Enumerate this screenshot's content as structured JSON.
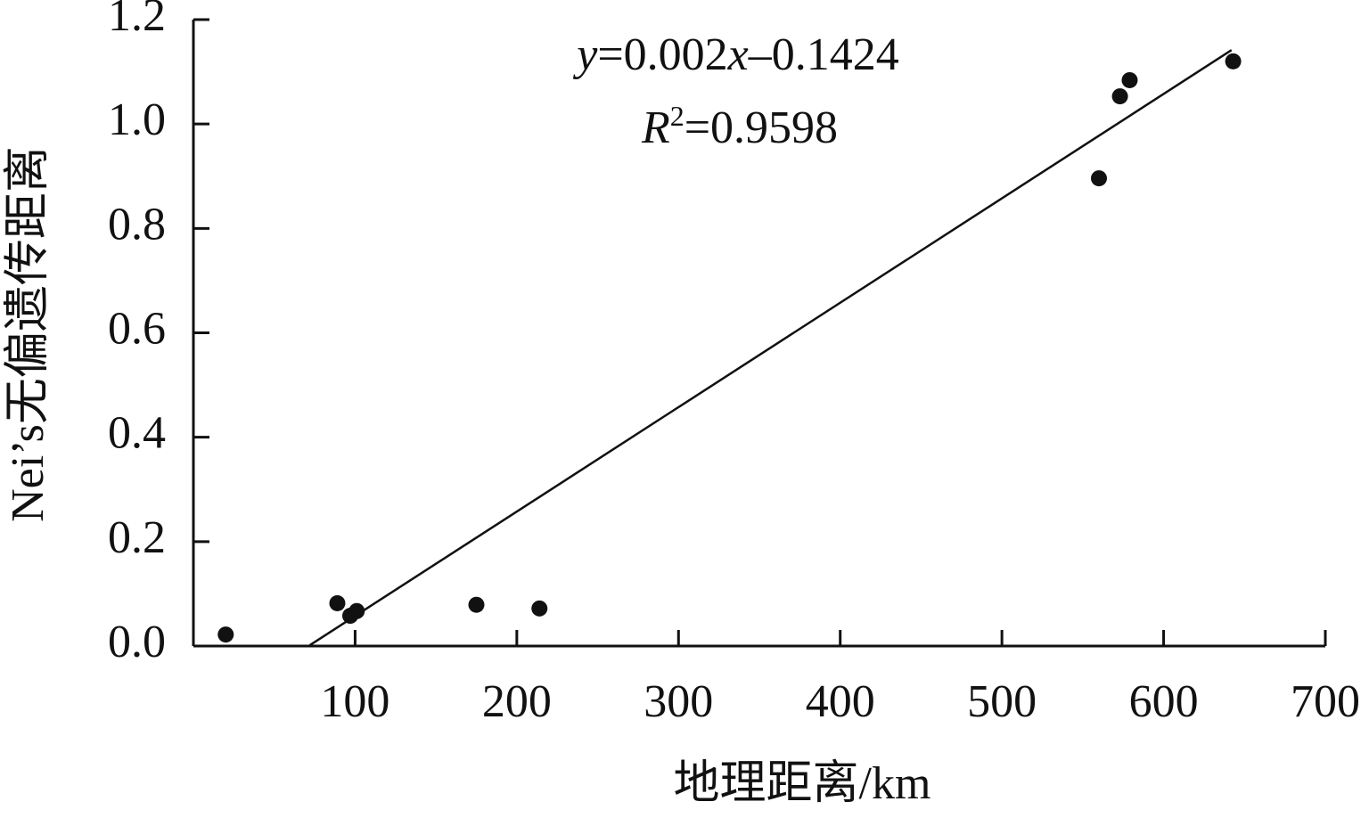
{
  "chart_data": {
    "type": "scatter",
    "x_label": "地理距离/km",
    "y_label": "Nei’s无偏遗传距离",
    "equation": [
      "y",
      "=0.002",
      "x",
      "–0.1424"
    ],
    "r_squared": [
      "R",
      "2",
      "=0.9598"
    ],
    "x": [
      20,
      89,
      97,
      101,
      175,
      214,
      560,
      573,
      579,
      643
    ],
    "values": [
      0.022,
      0.082,
      0.058,
      0.067,
      0.079,
      0.072,
      0.896,
      1.053,
      1.084,
      1.12
    ],
    "color": "#111111",
    "trendline": {
      "slope": 0.002,
      "intercept": -0.1424,
      "x": [
        72,
        642
      ]
    },
    "xlim": [
      0,
      700
    ],
    "ylim": [
      0,
      1.2
    ],
    "xticks": [
      100,
      200,
      300,
      400,
      500,
      600,
      700
    ],
    "yticks": [
      {
        "value": 0,
        "label": "0.0"
      },
      0.2,
      0.4,
      0.6,
      0.8,
      {
        "value": 1,
        "label": "1.0"
      },
      1.2
    ],
    "grid": false
  }
}
